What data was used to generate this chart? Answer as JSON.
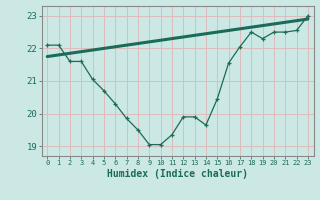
{
  "title": "",
  "xlabel": "Humidex (Indice chaleur)",
  "bg_color": "#cce8e4",
  "grid_color": "#ddbcbc",
  "line_color": "#1a6b5a",
  "spine_color": "#888888",
  "xlim": [
    -0.5,
    23.5
  ],
  "ylim": [
    18.7,
    23.3
  ],
  "xticks": [
    0,
    1,
    2,
    3,
    4,
    5,
    6,
    7,
    8,
    9,
    10,
    11,
    12,
    13,
    14,
    15,
    16,
    17,
    18,
    19,
    20,
    21,
    22,
    23
  ],
  "yticks": [
    19,
    20,
    21,
    22,
    23
  ],
  "data_x": [
    0,
    1,
    2,
    3,
    4,
    5,
    6,
    7,
    8,
    9,
    10,
    11,
    12,
    13,
    14,
    15,
    16,
    17,
    18,
    19,
    20,
    21,
    22,
    23
  ],
  "data_y": [
    22.1,
    22.1,
    21.6,
    21.6,
    21.05,
    20.7,
    20.3,
    19.85,
    19.5,
    19.05,
    19.05,
    19.35,
    19.9,
    19.9,
    19.65,
    20.45,
    21.55,
    22.05,
    22.5,
    22.3,
    22.5,
    22.5,
    22.55,
    23.0
  ],
  "trend_x": [
    0,
    23
  ],
  "trend_y": [
    21.75,
    22.9
  ],
  "xlabel_fontsize": 7,
  "tick_fontsize": 6
}
